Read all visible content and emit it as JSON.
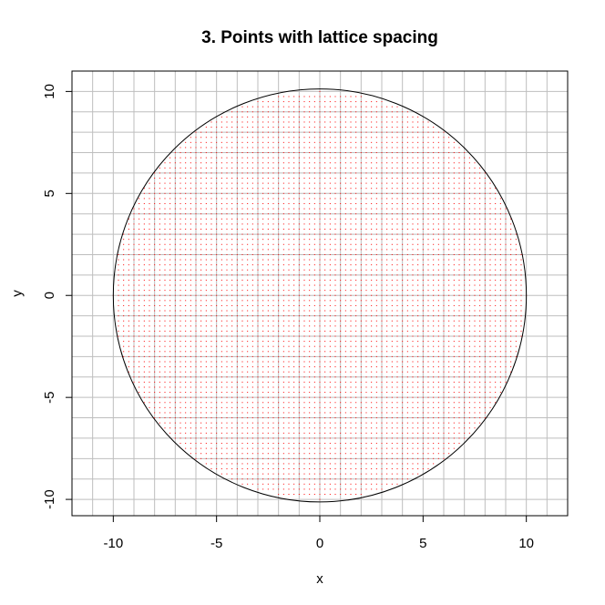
{
  "chart_data": {
    "type": "scatter",
    "title": "3. Points with lattice spacing",
    "xlabel": "x",
    "ylabel": "y",
    "xlim": [
      -12,
      12
    ],
    "ylim": [
      -10.8,
      11.0
    ],
    "xticks": [
      -10,
      -5,
      0,
      5,
      10
    ],
    "yticks": [
      -10,
      -5,
      0,
      5,
      10
    ],
    "grid": true,
    "grid_step": 1,
    "grid_color": "#bebebe",
    "circle": {
      "center": [
        0,
        0
      ],
      "radius": 10,
      "color": "#000000"
    },
    "points": {
      "description_of_rule": "",
      "lattice_spacing": 0.25,
      "region": "x^2 + y^2 <= 100",
      "color": "#ff0000"
    }
  }
}
